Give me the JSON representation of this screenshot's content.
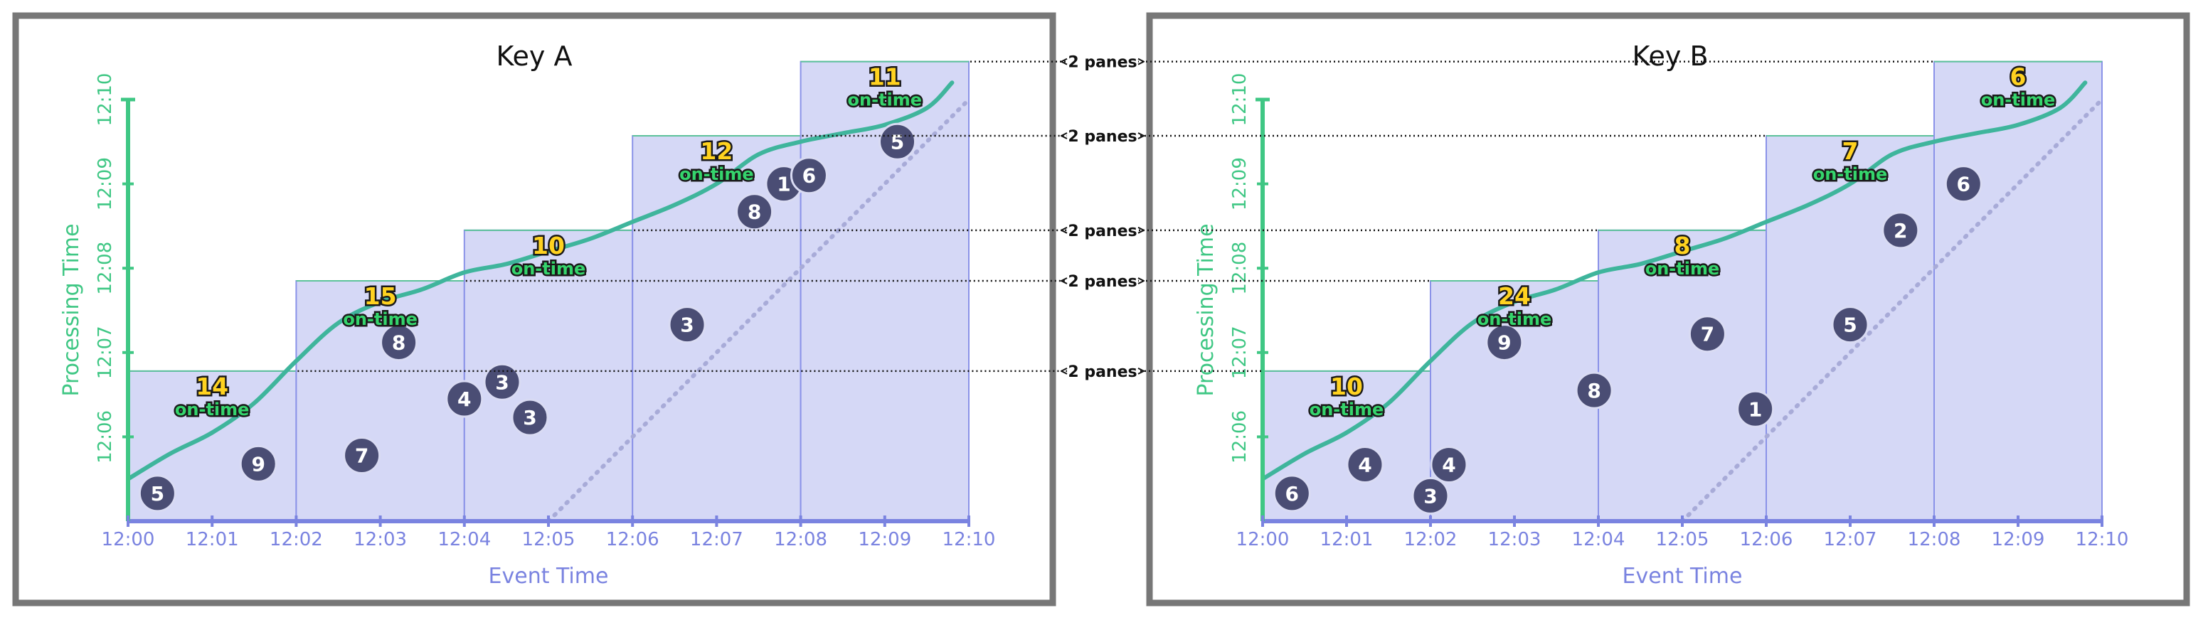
{
  "colors": {
    "pane_fill": "#d5d8f6",
    "pane_stroke": "#8a92e8",
    "watermark": "#3fb59c",
    "axis_event": "#7a83e0",
    "axis_processing": "#3fc784",
    "dot": "#4a4d74",
    "ideal_line": "#a8abd8",
    "frame": "#777777"
  },
  "connector_label": "2 panes",
  "chart_data": [
    {
      "type": "scatter",
      "title": "Key A",
      "xlabel": "Event Time",
      "ylabel": "Processing Time",
      "x_ticks": [
        "12:00",
        "12:01",
        "12:02",
        "12:03",
        "12:04",
        "12:05",
        "12:06",
        "12:07",
        "12:08",
        "12:09",
        "12:10"
      ],
      "y_ticks": [
        "12:06",
        "12:07",
        "12:08",
        "12:09",
        "12:10"
      ],
      "xlim": [
        0,
        10
      ],
      "ylim": [
        5.0,
        10.0
      ],
      "watermark": [
        [
          0,
          5.5
        ],
        [
          0.5,
          5.8
        ],
        [
          1,
          6.05
        ],
        [
          1.5,
          6.4
        ],
        [
          2,
          6.9
        ],
        [
          2.5,
          7.35
        ],
        [
          3,
          7.6
        ],
        [
          3.5,
          7.75
        ],
        [
          4,
          7.95
        ],
        [
          4.5,
          8.05
        ],
        [
          5,
          8.2
        ],
        [
          5.5,
          8.35
        ],
        [
          6,
          8.55
        ],
        [
          6.5,
          8.75
        ],
        [
          7,
          9.0
        ],
        [
          7.5,
          9.35
        ],
        [
          8,
          9.5
        ],
        [
          8.5,
          9.6
        ],
        [
          9,
          9.7
        ],
        [
          9.5,
          9.9
        ],
        [
          9.8,
          10.2
        ]
      ],
      "panes": [
        {
          "x0": 0,
          "x1": 2,
          "y_top": 6.78,
          "sum": "14",
          "label": "on-time"
        },
        {
          "x0": 2,
          "x1": 4,
          "y_top": 7.85,
          "sum": "15",
          "label": "on-time"
        },
        {
          "x0": 4,
          "x1": 6,
          "y_top": 8.45,
          "sum": "10",
          "label": "on-time"
        },
        {
          "x0": 6,
          "x1": 8,
          "y_top": 9.57,
          "sum": "12",
          "label": "on-time"
        },
        {
          "x0": 8,
          "x1": 10,
          "y_top": 10.45,
          "sum": "11",
          "label": "on-time"
        }
      ],
      "points": [
        {
          "x": 0.35,
          "y": 5.33,
          "v": "5"
        },
        {
          "x": 1.55,
          "y": 5.68,
          "v": "9"
        },
        {
          "x": 2.78,
          "y": 5.78,
          "v": "7"
        },
        {
          "x": 3.22,
          "y": 7.12,
          "v": "8"
        },
        {
          "x": 4.0,
          "y": 6.45,
          "v": "4"
        },
        {
          "x": 4.45,
          "y": 6.65,
          "v": "3"
        },
        {
          "x": 4.78,
          "y": 6.23,
          "v": "3"
        },
        {
          "x": 6.65,
          "y": 7.33,
          "v": "3"
        },
        {
          "x": 7.45,
          "y": 8.67,
          "v": "8"
        },
        {
          "x": 7.8,
          "y": 9.0,
          "v": "1"
        },
        {
          "x": 8.1,
          "y": 9.1,
          "v": "6"
        },
        {
          "x": 9.15,
          "y": 9.5,
          "v": "5"
        }
      ],
      "ideal_line": [
        [
          5,
          5
        ],
        [
          10,
          10
        ]
      ]
    },
    {
      "type": "scatter",
      "title": "Key B",
      "xlabel": "Event Time",
      "ylabel": "Processing Time",
      "x_ticks": [
        "12:00",
        "12:01",
        "12:02",
        "12:03",
        "12:04",
        "12:05",
        "12:06",
        "12:07",
        "12:08",
        "12:09",
        "12:10"
      ],
      "y_ticks": [
        "12:06",
        "12:07",
        "12:08",
        "12:09",
        "12:10"
      ],
      "xlim": [
        0,
        10
      ],
      "ylim": [
        5.0,
        10.0
      ],
      "watermark": [
        [
          0,
          5.5
        ],
        [
          0.5,
          5.8
        ],
        [
          1,
          6.05
        ],
        [
          1.5,
          6.4
        ],
        [
          2,
          6.9
        ],
        [
          2.5,
          7.35
        ],
        [
          3,
          7.6
        ],
        [
          3.5,
          7.75
        ],
        [
          4,
          7.95
        ],
        [
          4.5,
          8.05
        ],
        [
          5,
          8.2
        ],
        [
          5.5,
          8.35
        ],
        [
          6,
          8.55
        ],
        [
          6.5,
          8.75
        ],
        [
          7,
          9.0
        ],
        [
          7.5,
          9.35
        ],
        [
          8,
          9.5
        ],
        [
          8.5,
          9.6
        ],
        [
          9,
          9.7
        ],
        [
          9.5,
          9.9
        ],
        [
          9.8,
          10.2
        ]
      ],
      "panes": [
        {
          "x0": 0,
          "x1": 2,
          "y_top": 6.78,
          "sum": "10",
          "label": "on-time"
        },
        {
          "x0": 2,
          "x1": 4,
          "y_top": 7.85,
          "sum": "24",
          "label": "on-time"
        },
        {
          "x0": 4,
          "x1": 6,
          "y_top": 8.45,
          "sum": "8",
          "label": "on-time"
        },
        {
          "x0": 6,
          "x1": 8,
          "y_top": 9.57,
          "sum": "7",
          "label": "on-time"
        },
        {
          "x0": 8,
          "x1": 10,
          "y_top": 10.45,
          "sum": "6",
          "label": "on-time"
        }
      ],
      "points": [
        {
          "x": 0.35,
          "y": 5.33,
          "v": "6"
        },
        {
          "x": 1.22,
          "y": 5.67,
          "v": "4"
        },
        {
          "x": 2.0,
          "y": 5.3,
          "v": "3"
        },
        {
          "x": 2.22,
          "y": 5.67,
          "v": "4"
        },
        {
          "x": 2.88,
          "y": 7.12,
          "v": "9"
        },
        {
          "x": 3.95,
          "y": 6.55,
          "v": "8"
        },
        {
          "x": 5.3,
          "y": 7.22,
          "v": "7"
        },
        {
          "x": 5.87,
          "y": 6.33,
          "v": "1"
        },
        {
          "x": 7.0,
          "y": 7.33,
          "v": "5"
        },
        {
          "x": 7.6,
          "y": 8.45,
          "v": "2"
        },
        {
          "x": 8.35,
          "y": 9.0,
          "v": "6"
        }
      ],
      "ideal_line": [
        [
          5,
          5
        ],
        [
          10,
          10
        ]
      ]
    }
  ]
}
